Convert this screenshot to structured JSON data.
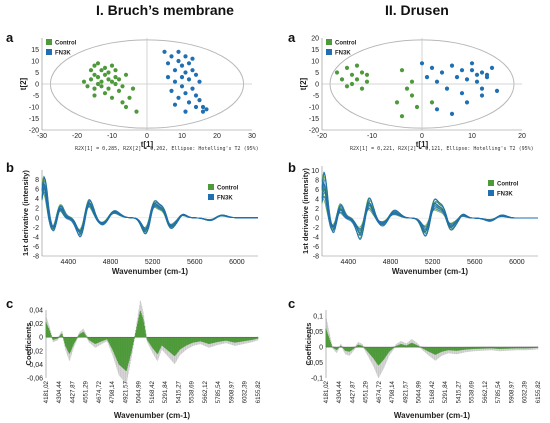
{
  "titles": {
    "left": "I. Bruch’s membrane",
    "right": "II. Drusen"
  },
  "panel_letters": {
    "a": "a",
    "b": "b",
    "c": "c"
  },
  "colors": {
    "control": "#4e9a3a",
    "fn3k": "#1f6fb2",
    "coef": "#4e9a3a",
    "ellipse": "#b8b8b8"
  },
  "chart_data": [
    {
      "id": "bm-scores",
      "type": "scatter",
      "xlabel": "t[1]",
      "ylabel": "t[2]",
      "xlim": [
        -30,
        30
      ],
      "ylim": [
        -20,
        20
      ],
      "xticks": [
        -30,
        -20,
        -10,
        0,
        10,
        20,
        30
      ],
      "yticks": [
        15,
        10,
        5,
        0,
        -5,
        -10,
        -15,
        -20
      ],
      "legend": [
        "Control",
        "FN3K"
      ],
      "legend_position": "top-left",
      "footnote": "R2X[1] = 0,285, R2X[2] = 0,202, Ellipse: Hotelling's T2 (95%)",
      "series": [
        {
          "name": "Control",
          "points": [
            [
              -18,
              1
            ],
            [
              -17,
              -1
            ],
            [
              -16,
              6
            ],
            [
              -16,
              2
            ],
            [
              -15,
              8
            ],
            [
              -15,
              4
            ],
            [
              -15,
              -2
            ],
            [
              -14,
              3
            ],
            [
              -14,
              0
            ],
            [
              -14,
              9
            ],
            [
              -13,
              6
            ],
            [
              -13,
              -1
            ],
            [
              -13,
              1
            ],
            [
              -12,
              7
            ],
            [
              -12,
              4
            ],
            [
              -12,
              -4
            ],
            [
              -11,
              2
            ],
            [
              -11,
              5
            ],
            [
              -11,
              -2
            ],
            [
              -10,
              8
            ],
            [
              -10,
              1
            ],
            [
              -10,
              -6
            ],
            [
              -9,
              3
            ],
            [
              -9,
              0
            ],
            [
              -9,
              6
            ],
            [
              -8,
              -3
            ],
            [
              -8,
              2
            ],
            [
              -7,
              -8
            ],
            [
              -7,
              -1
            ],
            [
              -6,
              4
            ],
            [
              -6,
              -10
            ],
            [
              -5,
              -6
            ],
            [
              -4,
              -2
            ],
            [
              -3,
              -12
            ],
            [
              -15,
              -5
            ]
          ]
        },
        {
          "name": "FN3K",
          "points": [
            [
              5,
              14
            ],
            [
              6,
              9
            ],
            [
              6,
              3
            ],
            [
              7,
              12
            ],
            [
              7,
              -3
            ],
            [
              8,
              6
            ],
            [
              8,
              1
            ],
            [
              9,
              14
            ],
            [
              9,
              -6
            ],
            [
              10,
              8
            ],
            [
              10,
              3
            ],
            [
              10,
              -1
            ],
            [
              11,
              12
            ],
            [
              11,
              5
            ],
            [
              11,
              -4
            ],
            [
              12,
              9
            ],
            [
              12,
              2
            ],
            [
              12,
              -8
            ],
            [
              13,
              6
            ],
            [
              13,
              -2
            ],
            [
              13,
              11
            ],
            [
              14,
              4
            ],
            [
              14,
              -5
            ],
            [
              14,
              -10
            ],
            [
              15,
              1
            ],
            [
              15,
              -7
            ],
            [
              16,
              -12
            ],
            [
              16,
              -10
            ],
            [
              17,
              -11
            ],
            [
              11,
              -12
            ],
            [
              8,
              -9
            ],
            [
              9,
              10
            ]
          ]
        }
      ]
    },
    {
      "id": "dr-scores",
      "type": "scatter",
      "xlabel": "t[1]",
      "ylabel": "t[2]",
      "xlim": [
        -20,
        20
      ],
      "ylim": [
        -20,
        20
      ],
      "xticks": [
        -20,
        -10,
        0,
        10,
        20
      ],
      "yticks": [
        20,
        15,
        10,
        5,
        0,
        -5,
        -10,
        -15,
        -20
      ],
      "legend": [
        "Control",
        "FN3K"
      ],
      "legend_position": "top-left",
      "footnote": "R2X[1] = 0,221, R2X[2] = 0,121, Ellipse: Hotelling's T2 (95%)",
      "series": [
        {
          "name": "Control",
          "points": [
            [
              -17,
              5
            ],
            [
              -16,
              2
            ],
            [
              -15,
              7
            ],
            [
              -15,
              -1
            ],
            [
              -14,
              4
            ],
            [
              -14,
              0
            ],
            [
              -13,
              8
            ],
            [
              -13,
              2
            ],
            [
              -12,
              5
            ],
            [
              -12,
              -2
            ],
            [
              -11,
              1
            ],
            [
              -11,
              4
            ],
            [
              -5,
              -8
            ],
            [
              -4,
              -14
            ],
            [
              -3,
              -2
            ],
            [
              -2,
              1
            ],
            [
              -1,
              -10
            ],
            [
              -2,
              -5
            ],
            [
              2,
              -8
            ],
            [
              -4,
              6
            ]
          ]
        },
        {
          "name": "FN3K",
          "points": [
            [
              0,
              9
            ],
            [
              1,
              3
            ],
            [
              2,
              7
            ],
            [
              3,
              1
            ],
            [
              4,
              5
            ],
            [
              5,
              -2
            ],
            [
              6,
              8
            ],
            [
              7,
              3
            ],
            [
              8,
              6
            ],
            [
              8,
              -4
            ],
            [
              9,
              2
            ],
            [
              9,
              -8
            ],
            [
              10,
              6
            ],
            [
              10,
              9
            ],
            [
              11,
              4
            ],
            [
              11,
              1
            ],
            [
              12,
              5
            ],
            [
              12,
              -2
            ],
            [
              13,
              3
            ],
            [
              14,
              7
            ],
            [
              15,
              -3
            ],
            [
              3,
              -11
            ],
            [
              6,
              -13
            ],
            [
              12,
              -5
            ],
            [
              13,
              4
            ]
          ]
        }
      ]
    },
    {
      "id": "bm-deriv",
      "type": "line",
      "xlabel": "Wavenumber (cm-1)",
      "ylabel": "1st derivative (intensity)",
      "xlim": [
        4150,
        6200
      ],
      "ylim": [
        -8,
        10
      ],
      "xticks": [
        4400,
        4800,
        5200,
        5600,
        6000
      ],
      "yticks": [
        8,
        6,
        4,
        2,
        0,
        -2,
        -4,
        -6,
        -8
      ],
      "legend": [
        "Control",
        "FN3K"
      ],
      "legend_position": "top-right",
      "series": [
        {
          "name": "Control",
          "curves": 8
        },
        {
          "name": "FN3K",
          "curves": 8
        }
      ]
    },
    {
      "id": "dr-deriv",
      "type": "line",
      "xlabel": "Wavenumber (cm-1)",
      "ylabel": "1st derivative (intensity)",
      "xlim": [
        4150,
        6200
      ],
      "ylim": [
        -8,
        11
      ],
      "xticks": [
        4400,
        4800,
        5200,
        5600,
        6000
      ],
      "yticks": [
        10,
        8,
        6,
        4,
        2,
        0,
        -2,
        -4,
        -6,
        -8
      ],
      "legend": [
        "Control",
        "FN3K"
      ],
      "legend_position": "top-right",
      "series": [
        {
          "name": "Control",
          "curves": 8
        },
        {
          "name": "FN3K",
          "curves": 8
        }
      ]
    },
    {
      "id": "bm-coef",
      "type": "bar",
      "xlabel": "Wavenumber (cm-1)",
      "ylabel": "Coefficients",
      "ylim": [
        -0.06,
        0.04
      ],
      "yticks": [
        0.04,
        0.02,
        0,
        -0.02,
        -0.04,
        -0.06
      ],
      "ytick_labels": [
        "0,04",
        "0,02",
        "0",
        "-0,02",
        "-0,04",
        "-0,06"
      ],
      "xtick_labels": [
        "4181,02",
        "4304,44",
        "4427,87",
        "4551,29",
        "4674,72",
        "4798,14",
        "4921,57",
        "5044,99",
        "5168,42",
        "5291,84",
        "5415,27",
        "5538,69",
        "5662,12",
        "5785,54",
        "5908,97",
        "6032,39",
        "6155,82"
      ],
      "profile": [
        [
          4181,
          0.022
        ],
        [
          4215,
          0.01
        ],
        [
          4245,
          -0.004
        ],
        [
          4290,
          -0.002
        ],
        [
          4330,
          0.006
        ],
        [
          4360,
          -0.012
        ],
        [
          4400,
          -0.025
        ],
        [
          4440,
          -0.01
        ],
        [
          4490,
          0.004
        ],
        [
          4530,
          0.008
        ],
        [
          4580,
          -0.004
        ],
        [
          4640,
          -0.01
        ],
        [
          4700,
          -0.006
        ],
        [
          4750,
          -0.003
        ],
        [
          4800,
          -0.018
        ],
        [
          4860,
          -0.04
        ],
        [
          4930,
          -0.05
        ],
        [
          4980,
          -0.02
        ],
        [
          5020,
          0.01
        ],
        [
          5060,
          0.04
        ],
        [
          5090,
          0.025
        ],
        [
          5120,
          -0.003
        ],
        [
          5170,
          -0.015
        ],
        [
          5220,
          -0.025
        ],
        [
          5260,
          -0.012
        ],
        [
          5320,
          -0.02
        ],
        [
          5380,
          -0.028
        ],
        [
          5430,
          -0.018
        ],
        [
          5490,
          -0.012
        ],
        [
          5550,
          -0.008
        ],
        [
          5620,
          -0.006
        ],
        [
          5700,
          -0.01
        ],
        [
          5780,
          -0.007
        ],
        [
          5860,
          -0.005
        ],
        [
          5940,
          -0.008
        ],
        [
          6020,
          -0.006
        ],
        [
          6100,
          -0.004
        ],
        [
          6155,
          -0.002
        ]
      ]
    },
    {
      "id": "dr-coef",
      "type": "bar",
      "xlabel": "Wavenumber (cm-1)",
      "ylabel": "Coefficients",
      "ylim": [
        -0.1,
        0.12
      ],
      "yticks": [
        0.1,
        0.05,
        0,
        -0.05,
        -0.1
      ],
      "ytick_labels": [
        "0,1",
        "0,05",
        "0",
        "-0,05",
        "-0,1"
      ],
      "xtick_labels": [
        "4181,02",
        "4304,44",
        "4427,87",
        "4551,29",
        "4674,72",
        "4798,14",
        "4921,57",
        "5044,99",
        "5168,42",
        "5291,84",
        "5415,27",
        "5538,69",
        "5662,12",
        "5785,54",
        "5908,97",
        "6032,39",
        "6155,82"
      ],
      "profile": [
        [
          4181,
          0.06
        ],
        [
          4210,
          0.03
        ],
        [
          4240,
          0.0
        ],
        [
          4280,
          -0.01
        ],
        [
          4320,
          0.005
        ],
        [
          4360,
          -0.012
        ],
        [
          4400,
          -0.015
        ],
        [
          4440,
          -0.005
        ],
        [
          4480,
          0.008
        ],
        [
          4520,
          0.004
        ],
        [
          4570,
          -0.015
        ],
        [
          4620,
          -0.035
        ],
        [
          4670,
          -0.06
        ],
        [
          4720,
          -0.04
        ],
        [
          4770,
          -0.015
        ],
        [
          4830,
          0.003
        ],
        [
          4880,
          0.01
        ],
        [
          4930,
          0.005
        ],
        [
          4980,
          0.014
        ],
        [
          5030,
          0.006
        ],
        [
          5080,
          -0.004
        ],
        [
          5140,
          -0.015
        ],
        [
          5200,
          -0.025
        ],
        [
          5260,
          -0.015
        ],
        [
          5320,
          -0.01
        ],
        [
          5400,
          -0.012
        ],
        [
          5480,
          -0.008
        ],
        [
          5560,
          -0.006
        ],
        [
          5640,
          -0.005
        ],
        [
          5720,
          -0.004
        ],
        [
          5800,
          -0.006
        ],
        [
          5880,
          -0.005
        ],
        [
          5960,
          -0.004
        ],
        [
          6040,
          -0.004
        ],
        [
          6120,
          -0.003
        ],
        [
          6155,
          -0.002
        ]
      ]
    }
  ]
}
